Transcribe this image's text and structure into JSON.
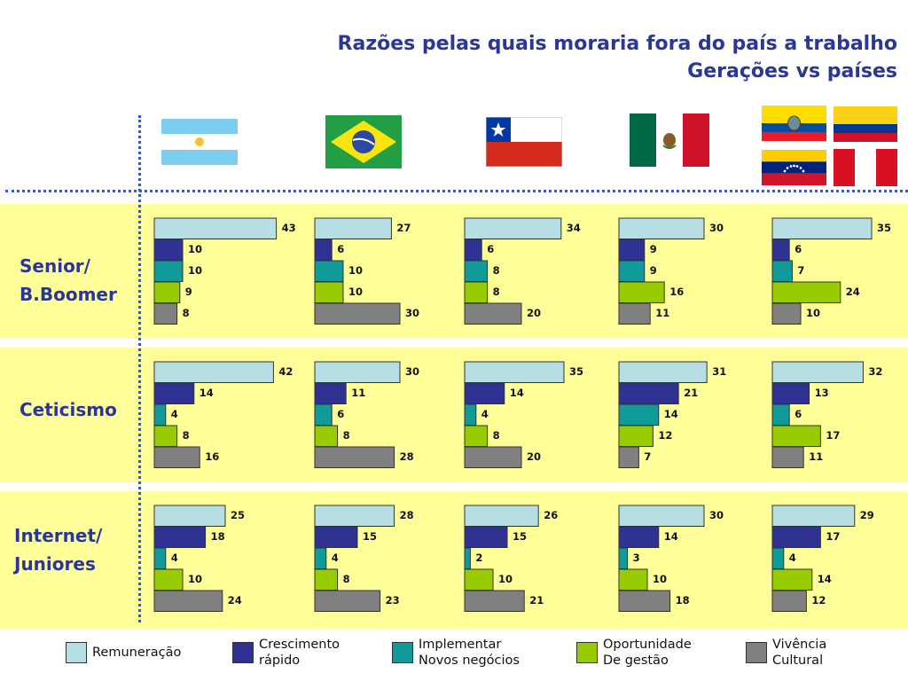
{
  "title": {
    "line1": "Razões pelas quais moraria fora do país a trabalho",
    "line2": "Gerações vs países"
  },
  "rows": [
    {
      "label_line1": "Senior/",
      "label_line2": "B.Boomer"
    },
    {
      "label_line1": "Ceticismo",
      "label_line2": ""
    },
    {
      "label_line1": "Internet/",
      "label_line2": "Juniores"
    }
  ],
  "flags": [
    "argentina-flag",
    "brazil-flag",
    "chile-flag",
    "mexico-flag",
    "ecuador-flag",
    "colombia-flag",
    "venezuela-flag",
    "peru-flag"
  ],
  "colors": {
    "remuneracao": "#b7dfe3",
    "crescimento": "#2f3193",
    "implementar": "#119a9a",
    "oportunidade": "#99cc00",
    "vivencia": "#808080",
    "band": "#ffff99",
    "title": "#2b3796"
  },
  "legend": [
    {
      "line1": "Remuneração",
      "line2": "",
      "color": "#b7dfe3"
    },
    {
      "line1": "Crescimento",
      "line2": "rápido",
      "color": "#2f3193"
    },
    {
      "line1": "Implementar",
      "line2": "Novos negócios",
      "color": "#119a9a"
    },
    {
      "line1": "Oportunidade",
      "line2": "De gestão",
      "color": "#99cc00"
    },
    {
      "line1": "Vivência",
      "line2": "Cultural",
      "color": "#808080"
    }
  ],
  "chart_data": {
    "type": "bar",
    "orientation": "horizontal",
    "series_names": [
      "Remuneração",
      "Crescimento rápido",
      "Implementar Novos negócios",
      "Oportunidade De gestão",
      "Vivência Cultural"
    ],
    "rows": [
      "Senior/ B.Boomer",
      "Ceticismo",
      "Internet/ Juniores"
    ],
    "charts": [
      [
        43,
        10,
        10,
        9,
        8
      ],
      [
        27,
        6,
        10,
        10,
        30
      ],
      [
        34,
        6,
        8,
        8,
        20
      ],
      [
        30,
        9,
        9,
        16,
        11
      ],
      [
        35,
        6,
        7,
        24,
        10
      ],
      [
        42,
        14,
        4,
        8,
        16
      ],
      [
        30,
        11,
        6,
        8,
        28
      ],
      [
        35,
        14,
        4,
        8,
        20
      ],
      [
        31,
        21,
        14,
        12,
        7
      ],
      [
        32,
        13,
        6,
        17,
        11
      ],
      [
        25,
        18,
        4,
        10,
        24
      ],
      [
        28,
        15,
        4,
        8,
        23
      ],
      [
        26,
        15,
        2,
        10,
        21
      ],
      [
        30,
        14,
        3,
        10,
        18
      ],
      [
        29,
        17,
        4,
        14,
        12
      ]
    ]
  }
}
